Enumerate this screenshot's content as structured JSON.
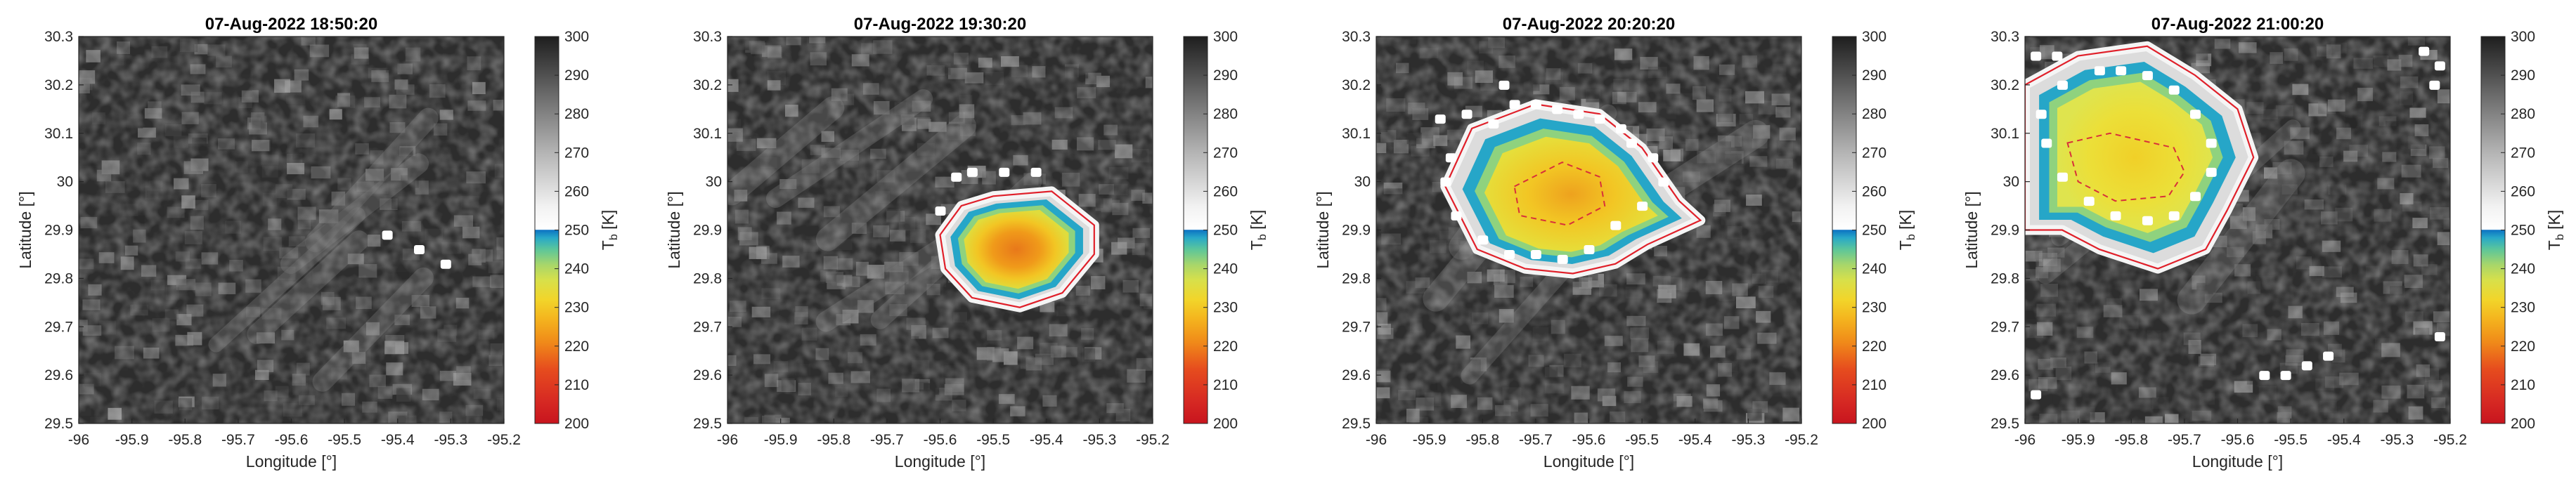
{
  "chart_data": [
    {
      "type": "heatmap",
      "title": "07-Aug-2022 18:50:20",
      "xlabel": "Longitude [°]",
      "ylabel": "Latitude [°]",
      "xlim": [
        -96,
        -95.2
      ],
      "ylim": [
        29.5,
        30.3
      ],
      "xticks": [
        "-96",
        "-95.9",
        "-95.8",
        "-95.7",
        "-95.6",
        "-95.5",
        "-95.4",
        "-95.3",
        "-95.2"
      ],
      "yticks": [
        "29.5",
        "29.6",
        "29.7",
        "29.8",
        "29.9",
        "30",
        "30.1",
        "30.2",
        "30.3"
      ],
      "colorbar": {
        "label": "T_b [K]",
        "label_main": "T",
        "label_sub": "b",
        "label_unit": "[K]",
        "range": [
          200,
          300
        ],
        "ticks": [
          "200",
          "210",
          "220",
          "230",
          "240",
          "250",
          "260",
          "270",
          "280",
          "290",
          "300"
        ]
      },
      "storm": null,
      "white_pixels": [
        [
          -95.42,
          29.89
        ],
        [
          -95.36,
          29.86
        ],
        [
          -95.31,
          29.83
        ]
      ]
    },
    {
      "type": "heatmap",
      "title": "07-Aug-2022 19:30:20",
      "xlabel": "Longitude [°]",
      "ylabel": "Latitude [°]",
      "xlim": [
        -96,
        -95.2
      ],
      "ylim": [
        29.5,
        30.3
      ],
      "xticks": [
        "-96",
        "-95.9",
        "-95.8",
        "-95.7",
        "-95.6",
        "-95.5",
        "-95.4",
        "-95.3",
        "-95.2"
      ],
      "yticks": [
        "29.5",
        "29.6",
        "29.7",
        "29.8",
        "29.9",
        "30",
        "30.1",
        "30.2",
        "30.3"
      ],
      "colorbar": {
        "label": "T_b [K]",
        "label_main": "T",
        "label_sub": "b",
        "label_unit": "[K]",
        "range": [
          200,
          300
        ],
        "ticks": [
          "200",
          "210",
          "220",
          "230",
          "240",
          "250",
          "260",
          "270",
          "280",
          "290",
          "300"
        ]
      },
      "storm": {
        "center": [
          -95.46,
          29.86
        ],
        "min_tb": 222,
        "outline": [
          [
            -95.56,
            29.95
          ],
          [
            -95.5,
            29.97
          ],
          [
            -95.39,
            29.98
          ],
          [
            -95.31,
            29.91
          ],
          [
            -95.31,
            29.85
          ],
          [
            -95.37,
            29.77
          ],
          [
            -95.45,
            29.74
          ],
          [
            -95.54,
            29.76
          ],
          [
            -95.59,
            29.82
          ],
          [
            -95.6,
            29.89
          ]
        ]
      },
      "white_pixels": [
        [
          -95.6,
          29.94
        ],
        [
          -95.57,
          30.01
        ],
        [
          -95.54,
          30.02
        ],
        [
          -95.48,
          30.02
        ],
        [
          -95.42,
          30.02
        ]
      ]
    },
    {
      "type": "heatmap",
      "title": "07-Aug-2022 20:20:20",
      "xlabel": "Longitude [°]",
      "ylabel": "Latitude [°]",
      "xlim": [
        -96,
        -95.2
      ],
      "ylim": [
        29.5,
        30.3
      ],
      "xticks": [
        "-96",
        "-95.9",
        "-95.8",
        "-95.7",
        "-95.6",
        "-95.5",
        "-95.4",
        "-95.3",
        "-95.2"
      ],
      "yticks": [
        "29.5",
        "29.6",
        "29.7",
        "29.8",
        "29.9",
        "30",
        "30.1",
        "30.2",
        "30.3"
      ],
      "colorbar": {
        "label": "T_b [K]",
        "label_main": "T",
        "label_sub": "b",
        "label_unit": "[K]",
        "range": [
          200,
          300
        ],
        "ticks": [
          "200",
          "210",
          "220",
          "230",
          "240",
          "250",
          "260",
          "270",
          "280",
          "290",
          "300"
        ]
      },
      "storm": {
        "center": [
          -95.64,
          29.95
        ],
        "min_tb": 228,
        "outline": [
          [
            -95.82,
            30.11
          ],
          [
            -95.7,
            30.16
          ],
          [
            -95.58,
            30.14
          ],
          [
            -95.5,
            30.07
          ],
          [
            -95.43,
            29.96
          ],
          [
            -95.39,
            29.92
          ],
          [
            -95.49,
            29.87
          ],
          [
            -95.55,
            29.83
          ],
          [
            -95.63,
            29.81
          ],
          [
            -95.72,
            29.82
          ],
          [
            -95.81,
            29.86
          ],
          [
            -95.87,
            29.99
          ]
        ],
        "inner": [
          [
            -95.74,
            29.99
          ],
          [
            -95.65,
            30.04
          ],
          [
            -95.58,
            30.01
          ],
          [
            -95.57,
            29.95
          ],
          [
            -95.64,
            29.91
          ],
          [
            -95.73,
            29.93
          ]
        ]
      },
      "white_pixels": [
        [
          -95.83,
          30.14
        ],
        [
          -95.78,
          30.12
        ],
        [
          -95.74,
          30.16
        ],
        [
          -95.7,
          30.16
        ],
        [
          -95.66,
          30.15
        ],
        [
          -95.62,
          30.14
        ],
        [
          -95.58,
          30.13
        ],
        [
          -95.54,
          30.11
        ],
        [
          -95.52,
          30.08
        ],
        [
          -95.48,
          30.05
        ],
        [
          -95.46,
          30.0
        ],
        [
          -95.5,
          29.95
        ],
        [
          -95.55,
          29.91
        ],
        [
          -95.6,
          29.86
        ],
        [
          -95.65,
          29.84
        ],
        [
          -95.7,
          29.85
        ],
        [
          -95.75,
          29.85
        ],
        [
          -95.8,
          29.88
        ],
        [
          -95.85,
          29.93
        ],
        [
          -95.87,
          30.0
        ],
        [
          -95.86,
          30.05
        ],
        [
          -95.88,
          30.13
        ],
        [
          -95.76,
          30.2
        ]
      ]
    },
    {
      "type": "heatmap",
      "title": "07-Aug-2022 21:00:20",
      "xlabel": "Longitude [°]",
      "ylabel": "Latitude [°]",
      "xlim": [
        -96,
        -95.2
      ],
      "ylim": [
        29.5,
        30.3
      ],
      "xticks": [
        "-96",
        "-95.9",
        "-95.8",
        "-95.7",
        "-95.6",
        "-95.5",
        "-95.4",
        "-95.3",
        "-95.2"
      ],
      "yticks": [
        "29.5",
        "29.6",
        "29.7",
        "29.8",
        "29.9",
        "30",
        "30.1",
        "30.2",
        "30.3"
      ],
      "colorbar": {
        "label": "T_b [K]",
        "label_main": "T",
        "label_sub": "b",
        "label_unit": "[K]",
        "range": [
          200,
          300
        ],
        "ticks": [
          "200",
          "210",
          "220",
          "230",
          "240",
          "250",
          "260",
          "270",
          "280",
          "290",
          "300"
        ]
      },
      "storm": {
        "center": [
          -95.81,
          30.05
        ],
        "min_tb": 232,
        "outline": [
          [
            -96.0,
            30.2
          ],
          [
            -95.9,
            30.26
          ],
          [
            -95.77,
            30.28
          ],
          [
            -95.68,
            30.22
          ],
          [
            -95.6,
            30.15
          ],
          [
            -95.57,
            30.05
          ],
          [
            -95.62,
            29.94
          ],
          [
            -95.66,
            29.86
          ],
          [
            -95.75,
            29.82
          ],
          [
            -95.86,
            29.86
          ],
          [
            -95.93,
            29.9
          ],
          [
            -96.0,
            29.9
          ]
        ],
        "inner": [
          [
            -95.92,
            30.08
          ],
          [
            -95.84,
            30.1
          ],
          [
            -95.72,
            30.07
          ],
          [
            -95.7,
            30.02
          ],
          [
            -95.73,
            29.97
          ],
          [
            -95.83,
            29.96
          ],
          [
            -95.9,
            30.0
          ]
        ]
      },
      "white_pixels": [
        [
          -95.98,
          30.26
        ],
        [
          -95.94,
          30.26
        ],
        [
          -95.86,
          30.23
        ],
        [
          -95.82,
          30.23
        ],
        [
          -95.77,
          30.22
        ],
        [
          -95.72,
          30.19
        ],
        [
          -95.68,
          30.14
        ],
        [
          -95.65,
          30.08
        ],
        [
          -95.65,
          30.02
        ],
        [
          -95.68,
          29.97
        ],
        [
          -95.72,
          29.93
        ],
        [
          -95.77,
          29.92
        ],
        [
          -95.83,
          29.93
        ],
        [
          -95.88,
          29.96
        ],
        [
          -95.93,
          30.01
        ],
        [
          -95.96,
          30.08
        ],
        [
          -95.97,
          30.14
        ],
        [
          -95.93,
          30.2
        ],
        [
          -95.22,
          30.24
        ],
        [
          -95.25,
          30.27
        ],
        [
          -95.23,
          30.2
        ],
        [
          -95.22,
          29.68
        ],
        [
          -95.43,
          29.64
        ],
        [
          -95.47,
          29.62
        ],
        [
          -95.51,
          29.6
        ],
        [
          -95.55,
          29.6
        ],
        [
          -95.98,
          29.56
        ]
      ]
    }
  ]
}
